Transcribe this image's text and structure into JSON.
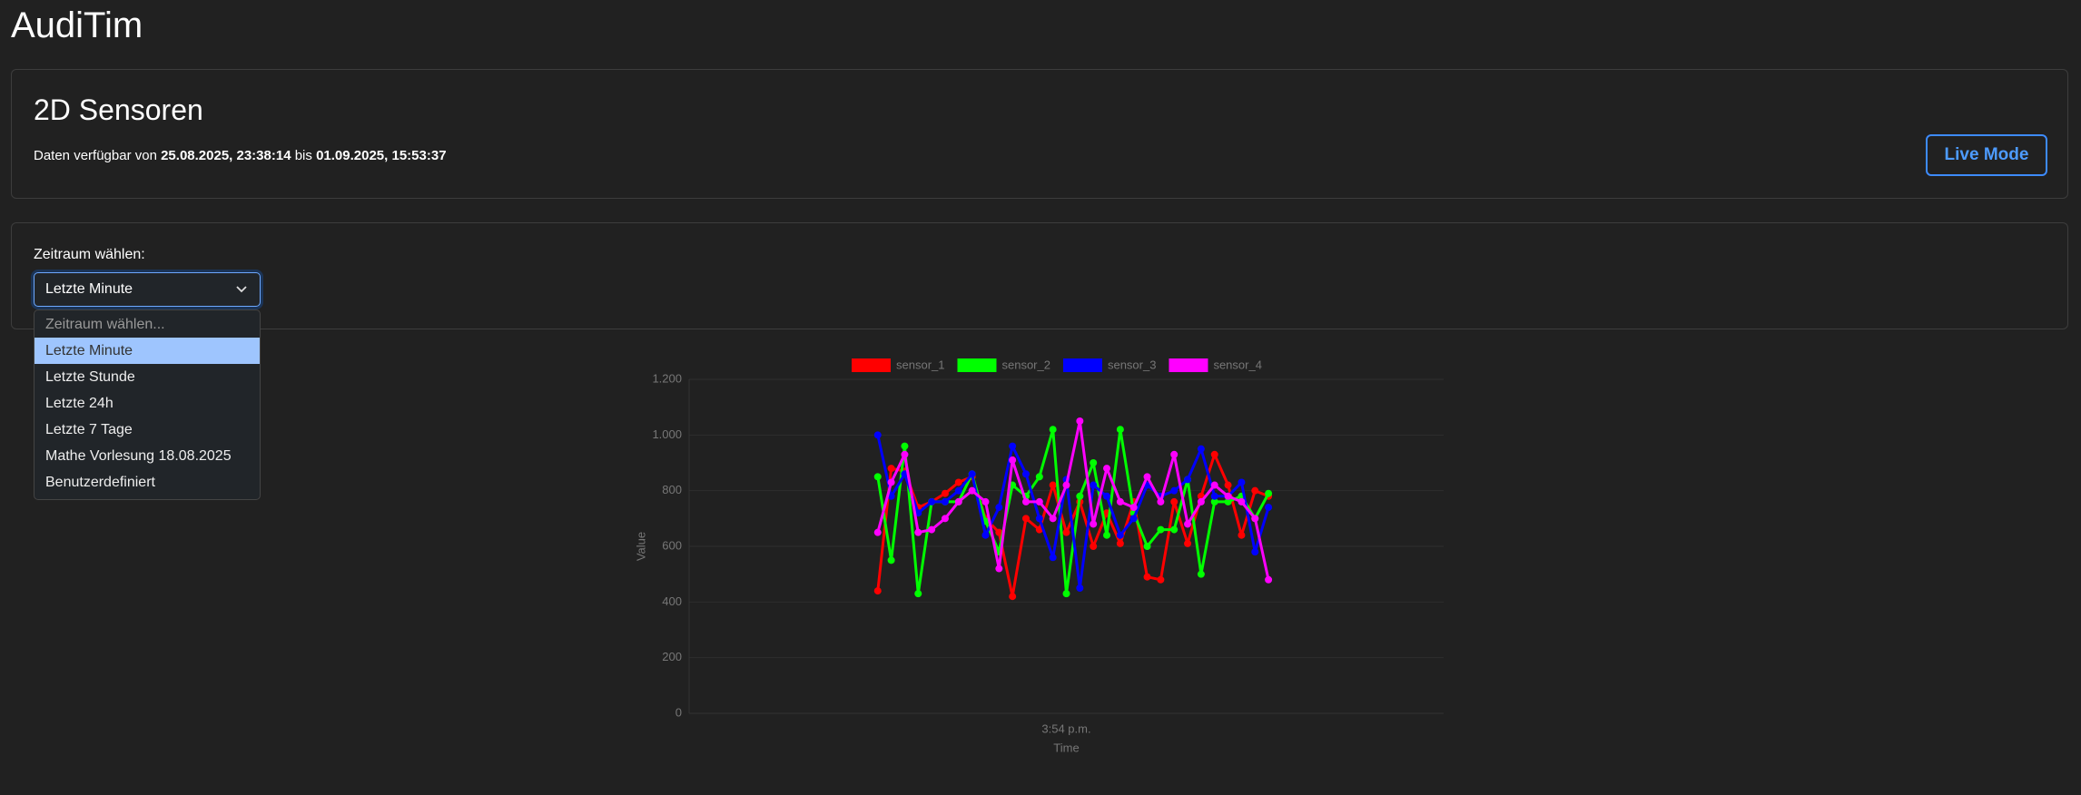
{
  "header": {
    "title": "AudiTim"
  },
  "info_card": {
    "title": "2D Sensoren",
    "prefix": "Daten verfügbar von",
    "start": "25.08.2025, 23:38:14",
    "middle": "bis",
    "end": "01.09.2025, 15:53:37",
    "button": "Live Mode"
  },
  "range_card": {
    "label": "Zeitraum wählen:",
    "selected": "Letzte Minute",
    "options": [
      "Zeitraum wählen...",
      "Letzte Minute",
      "Letzte Stunde",
      "Letzte 24h",
      "Letzte 7 Tage",
      "Mathe Vorlesung 18.08.2025",
      "Benutzerdefiniert"
    ]
  },
  "chart_data": {
    "type": "line",
    "x_label": "Time",
    "y_label": "Value",
    "categories": [
      null,
      null,
      null,
      null,
      null,
      null,
      null,
      null,
      null,
      null,
      null,
      null,
      null,
      null,
      null,
      null,
      null,
      null,
      null,
      null,
      null,
      null,
      null,
      null,
      null,
      null,
      null,
      null,
      "3:54 p.m.",
      null,
      null,
      null,
      null,
      null,
      null,
      null,
      null,
      null,
      null,
      null,
      null,
      null,
      null,
      null,
      null,
      null,
      null,
      null,
      null,
      null,
      null,
      null,
      null,
      null,
      null,
      null,
      null
    ],
    "ylim": [
      0,
      1200
    ],
    "yticks": [
      0,
      200,
      400,
      600,
      800,
      {
        "value": 1000,
        "label": "1.000"
      },
      {
        "value": 1200,
        "label": "1.200"
      }
    ],
    "grid": true,
    "legend": "top",
    "series": [
      {
        "name": "sensor_1",
        "color": "#ff0000",
        "values": [
          null,
          null,
          null,
          null,
          null,
          null,
          null,
          null,
          null,
          null,
          null,
          null,
          null,
          null,
          440,
          880,
          870,
          740,
          760,
          790,
          830,
          850,
          700,
          650,
          420,
          700,
          660,
          820,
          650,
          760,
          600,
          720,
          610,
          760,
          490,
          480,
          760,
          610,
          780,
          930,
          820,
          640,
          800,
          780,
          null,
          null,
          null,
          null,
          null,
          null,
          null,
          null,
          null,
          null,
          null,
          null,
          null
        ]
      },
      {
        "name": "sensor_2",
        "color": "#00ff00",
        "values": [
          null,
          null,
          null,
          null,
          null,
          null,
          null,
          null,
          null,
          null,
          null,
          null,
          null,
          null,
          850,
          550,
          960,
          430,
          760,
          760,
          760,
          860,
          690,
          580,
          820,
          780,
          850,
          1020,
          430,
          780,
          900,
          640,
          1020,
          720,
          600,
          660,
          660,
          840,
          500,
          760,
          760,
          780,
          700,
          790,
          null,
          null,
          null,
          null,
          null,
          null,
          null,
          null,
          null,
          null,
          null,
          null,
          null
        ]
      },
      {
        "name": "sensor_3",
        "color": "#0000ff",
        "values": [
          null,
          null,
          null,
          null,
          null,
          null,
          null,
          null,
          null,
          null,
          null,
          null,
          null,
          null,
          1000,
          780,
          860,
          720,
          760,
          760,
          800,
          860,
          640,
          740,
          960,
          860,
          700,
          560,
          840,
          450,
          820,
          780,
          640,
          700,
          820,
          780,
          800,
          840,
          950,
          780,
          780,
          830,
          580,
          740,
          null,
          null,
          null,
          null,
          null,
          null,
          null,
          null,
          null,
          null,
          null,
          null,
          null
        ]
      },
      {
        "name": "sensor_4",
        "color": "#ff00ff",
        "values": [
          null,
          null,
          null,
          null,
          null,
          null,
          null,
          null,
          null,
          null,
          null,
          null,
          null,
          null,
          650,
          830,
          930,
          650,
          660,
          700,
          760,
          800,
          760,
          520,
          910,
          760,
          760,
          700,
          820,
          1050,
          680,
          880,
          760,
          740,
          850,
          760,
          930,
          680,
          760,
          820,
          780,
          760,
          700,
          480,
          null,
          null,
          null,
          null,
          null,
          null,
          null,
          null,
          null,
          null,
          null,
          null,
          null
        ]
      }
    ]
  }
}
